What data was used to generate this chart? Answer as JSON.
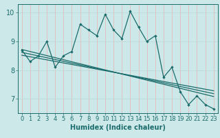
{
  "title": "",
  "xlabel": "Humidex (Indice chaleur)",
  "ylabel": "",
  "bg_color": "#cde8e8",
  "line_color": "#1a6b6b",
  "grid_color_v": "#e8b0b0",
  "grid_color_h": "#b8d8d8",
  "xlim": [
    -0.5,
    23.5
  ],
  "ylim": [
    6.5,
    10.3
  ],
  "yticks": [
    7,
    8,
    9,
    10
  ],
  "xticks": [
    0,
    1,
    2,
    3,
    4,
    5,
    6,
    7,
    8,
    9,
    10,
    11,
    12,
    13,
    14,
    15,
    16,
    17,
    18,
    19,
    20,
    21,
    22,
    23
  ],
  "series1_x": [
    0,
    1,
    2,
    3,
    4,
    5,
    6,
    7,
    8,
    9,
    10,
    11,
    12,
    13,
    14,
    15,
    16,
    17,
    18,
    19,
    20,
    21,
    22,
    23
  ],
  "series1_y": [
    8.7,
    8.3,
    8.5,
    9.0,
    8.1,
    8.5,
    8.65,
    9.6,
    9.4,
    9.2,
    9.95,
    9.4,
    9.1,
    10.05,
    9.5,
    9.0,
    9.2,
    7.75,
    8.1,
    7.25,
    6.8,
    7.1,
    6.8,
    6.65
  ],
  "trend1_x": [
    0,
    23
  ],
  "trend1_y": [
    8.72,
    7.08
  ],
  "trend2_x": [
    0,
    23
  ],
  "trend2_y": [
    8.62,
    7.18
  ],
  "trend3_x": [
    0,
    23
  ],
  "trend3_y": [
    8.52,
    7.28
  ],
  "xlabel_fontsize": 7,
  "tick_fontsize": 6,
  "linewidth": 0.9,
  "markersize": 2.2
}
